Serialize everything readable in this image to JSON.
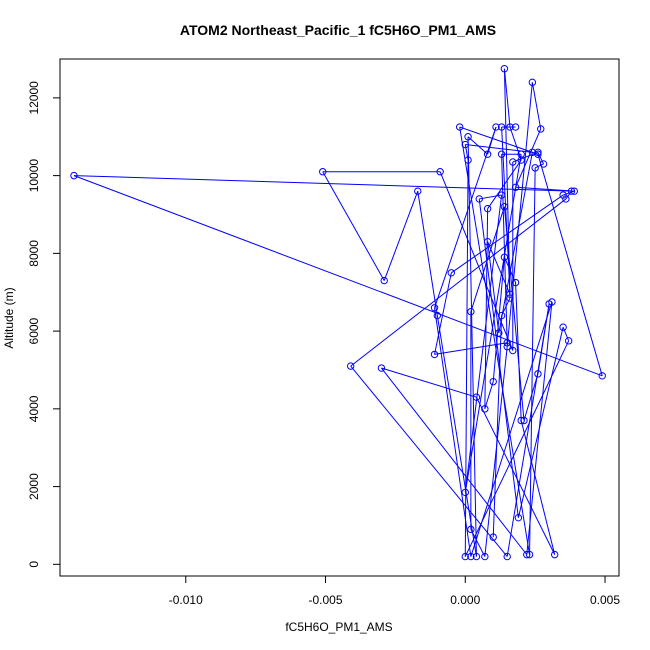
{
  "chart_data": {
    "type": "line",
    "title": "ATOM2 Northeast_Pacific_1 fC5H6O_PM1_AMS",
    "xlabel": "fC5H6O_PM1_AMS",
    "ylabel": "Altitude (m)",
    "xlim": [
      -0.0145,
      0.0055
    ],
    "ylim": [
      -300,
      13000
    ],
    "x_ticks": [
      {
        "value": -0.01,
        "label": "-0.010"
      },
      {
        "value": -0.005,
        "label": "-0.005"
      },
      {
        "value": 0.0,
        "label": "0.000"
      },
      {
        "value": 0.005,
        "label": "0.005"
      }
    ],
    "y_ticks": [
      {
        "value": 0,
        "label": "0"
      },
      {
        "value": 2000,
        "label": "2000"
      },
      {
        "value": 4000,
        "label": "4000"
      },
      {
        "value": 6000,
        "label": "6000"
      },
      {
        "value": 8000,
        "label": "8000"
      },
      {
        "value": 10000,
        "label": "10000"
      },
      {
        "value": 12000,
        "label": "12000"
      }
    ],
    "grid": false,
    "series_color": "#0000ff",
    "series": [
      {
        "marker": "open-circle",
        "points": [
          [
            0.001,
            700
          ],
          [
            0.0013,
            6400
          ],
          [
            0.0016,
            6850
          ],
          [
            0.0014,
            12750
          ],
          [
            0.0016,
            11250
          ],
          [
            0.002,
            10400
          ],
          [
            0.0008,
            9150
          ],
          [
            0.0007,
            4000
          ],
          [
            0.001,
            4700
          ],
          [
            0.0014,
            7900
          ],
          [
            0.0018,
            7250
          ],
          [
            0.002,
            3700
          ],
          [
            0.0032,
            250
          ],
          [
            0.0004,
            4300
          ],
          [
            -0.003,
            5050
          ],
          [
            0.0022,
            250
          ],
          [
            0.0031,
            6750
          ],
          [
            0.0002,
            200
          ],
          [
            -0.0011,
            6600
          ],
          [
            0.0011,
            11250
          ],
          [
            0.0008,
            10550
          ],
          [
            0.0001,
            11000
          ],
          [
            0.0004,
            200
          ],
          [
            -0.001,
            6400
          ],
          [
            -0.0017,
            9600
          ],
          [
            -0.0029,
            7300
          ],
          [
            -0.0051,
            10100
          ],
          [
            -0.0009,
            10100
          ],
          [
            0.0017,
            5500
          ],
          [
            0.0017,
            10350
          ],
          [
            0.0026,
            10600
          ],
          [
            0.0028,
            10300
          ],
          [
            0.0025,
            10200
          ],
          [
            0.0023,
            250
          ],
          [
            -0.0002,
            11250
          ],
          [
            0.0026,
            10550
          ],
          [
            0.0049,
            4850
          ],
          [
            -0.014,
            10000
          ],
          [
            0.0038,
            9600
          ],
          [
            0.0036,
            9400
          ],
          [
            -0.0041,
            5100
          ],
          [
            0.0015,
            200
          ],
          [
            0.003,
            6700
          ],
          [
            0.0026,
            4900
          ],
          [
            0.0021,
            3700
          ],
          [
            0.0014,
            9200
          ],
          [
            0.0002,
            6500
          ],
          [
            0.0002,
            900
          ],
          [
            0.0007,
            200
          ],
          [
            0.0015,
            5600
          ],
          [
            0.0024,
            12400
          ],
          [
            0.0027,
            11200
          ],
          [
            0.0018,
            9700
          ],
          [
            0.0039,
            9600
          ],
          [
            0.0035,
            9500
          ],
          [
            -0.0005,
            7500
          ],
          [
            -0.0011,
            5400
          ],
          [
            0.0015,
            5700
          ],
          [
            0.0013,
            10550
          ],
          [
            0.002,
            10550
          ],
          [
            0.0,
            1850
          ],
          [
            0.0013,
            9500
          ],
          [
            0.0005,
            9400
          ],
          [
            0.0019,
            1200
          ],
          [
            0.0035,
            6100
          ],
          [
            0.0037,
            5750
          ],
          [
            0.0,
            200
          ],
          [
            0.0001,
            10400
          ],
          [
            0.0,
            10800
          ],
          [
            0.0024,
            10600
          ],
          [
            0.0012,
            5950
          ],
          [
            0.0008,
            8300
          ],
          [
            0.0016,
            6950
          ],
          [
            0.0013,
            11250
          ],
          [
            0.0018,
            11250
          ]
        ]
      }
    ]
  }
}
